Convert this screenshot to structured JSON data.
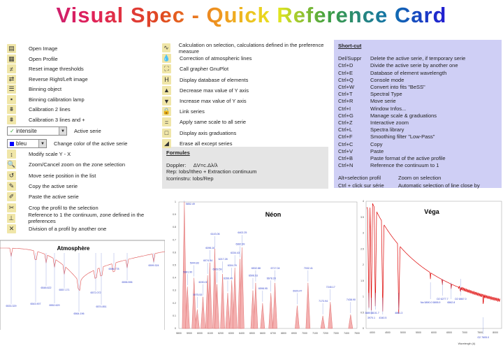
{
  "title": "Visual Spec - Quick Reference Card",
  "left_items": [
    {
      "icon": "open-image-icon",
      "label": "Open Image"
    },
    {
      "icon": "open-profile-icon",
      "label": "Open Profile"
    },
    {
      "icon": "reset-thresholds-icon",
      "label": "Reset image thresholds"
    },
    {
      "icon": "reverse-image-icon",
      "label": "Reverse Right/Left image"
    },
    {
      "icon": "binning-object-icon",
      "label": "Binning object"
    },
    {
      "icon": "binning-lamp-icon",
      "label": "Binning calibration lamp"
    },
    {
      "icon": "calibration-2-icon",
      "label": "Calibration 2 lines"
    },
    {
      "icon": "calibration-3-icon",
      "label": "Calibration 3 lines and +"
    }
  ],
  "active_serie": {
    "value": "intensite",
    "label": "Active serie"
  },
  "serie_color": {
    "value": "bleu",
    "label": "Change color of the active serie",
    "color": "#0000ff"
  },
  "left_items2": [
    {
      "icon": "scale-icon",
      "label": "Modify scale Y - X"
    },
    {
      "icon": "zoom-icon",
      "label": "Zoom/Cancel zoom on the zone selection"
    },
    {
      "icon": "move-serie-icon",
      "label": "Move serie position in the list"
    },
    {
      "icon": "copy-serie-icon",
      "label": "Copy the active serie"
    },
    {
      "icon": "paste-serie-icon",
      "label": "Paste the active serie"
    },
    {
      "icon": "crop-icon",
      "label": "Crop the profil to the selection"
    },
    {
      "icon": "continuum-icon",
      "label": "Reference to 1 the continuum, zone defined in the preferences"
    },
    {
      "icon": "divide-icon",
      "label": "Division of a profil by another one"
    }
  ],
  "mid_items": [
    {
      "icon": "calculation-icon",
      "label": "Calculation on selection, calculations defined in the preference measure"
    },
    {
      "icon": "atmospheric-icon",
      "label": "Correction of atmospheric lines"
    },
    {
      "icon": "gnuplot-icon",
      "label": "Call grapher GnuPlot"
    },
    {
      "icon": "database-icon",
      "label": "Display database of elements"
    },
    {
      "icon": "decrease-y-icon",
      "label": "Decrease max value of Y axis"
    },
    {
      "icon": "increase-y-icon",
      "label": "Increase max value of Y axis"
    },
    {
      "icon": "link-icon",
      "label": "Link series"
    },
    {
      "icon": "same-scale-icon",
      "label": "Apply same scale to all serie"
    },
    {
      "icon": "graduations-icon",
      "label": "Display axis graduations"
    },
    {
      "icon": "erase-icon",
      "label": "Erase all except series"
    }
  ],
  "formules": {
    "heading": "Formules",
    "doppler_label": "Doppler:",
    "doppler": "ΔV=c.Δλ/λ",
    "rep": "Rep: Iobs/Itheo + Extraction continuum",
    "icorr": "Icorrinstru: Iobs/Rep"
  },
  "shortcuts": {
    "heading": "Short-cut",
    "items": [
      [
        "Del/Suppr",
        "Delete the active serie, if temporary serie"
      ],
      [
        "Ctrl+D",
        "Divide the active serie by another one"
      ],
      [
        "Ctrl+E",
        "Database of element wavelength"
      ],
      [
        "Ctrl+Q",
        "Console mode"
      ],
      [
        "Ctrl+W",
        "Convert into fits \"BeSS\""
      ],
      [
        "Ctrl+T",
        "Spectral Type"
      ],
      [
        "Ctrl+R",
        "Move serie"
      ],
      [
        "Ctrl+I",
        "Window Infos..."
      ],
      [
        "Ctrl+G",
        "Manage scale & graduations"
      ],
      [
        "Ctrl+Z",
        "Interactive zoom"
      ],
      [
        "Ctrl+L",
        "Spectra library"
      ],
      [
        "Ctrl+F",
        "Smoothing filter \"Low-Pass\""
      ],
      [
        "Ctrl+C",
        "Copy"
      ],
      [
        "Ctrl+V",
        "Paste"
      ],
      [
        "Ctrl+B",
        "Paste format of the active profile"
      ],
      [
        "Ctrl+N",
        "Reference the continuum to 1"
      ]
    ],
    "extra": [
      [
        "Alt+selection profil",
        "Zoom on selection"
      ],
      [
        "Ctrl + click sur série",
        "Automatic selection of line close by"
      ]
    ]
  },
  "chart_data": [
    {
      "type": "line",
      "title": "Atmosphère",
      "line_labels": [
        "6533.329",
        "6543.907",
        "6548.622",
        "6552.629",
        "6557.171",
        "6564.196",
        "6572.072",
        "6574.851",
        "6586.778",
        "6596.596",
        "6599.324"
      ],
      "color": "#e05050"
    },
    {
      "type": "bar",
      "title": "Néon",
      "xlim": [
        5800,
        7500
      ],
      "ylim": [
        0,
        1
      ],
      "xticks": [
        5800,
        5900,
        6000,
        6100,
        6200,
        6300,
        6400,
        6500,
        6600,
        6700,
        6800,
        6900,
        7000,
        7100,
        7200,
        7300,
        7400,
        7500
      ],
      "yticks": [
        0,
        0.1,
        0.2,
        0.3,
        0.4,
        0.5,
        0.6,
        0.7,
        0.8,
        0.9,
        1
      ],
      "lines": [
        [
          5852.49,
          1.0
        ],
        [
          5881.9,
          0.33
        ],
        [
          5944.83,
          0.4
        ],
        [
          5975.53,
          0.15
        ],
        [
          6030.0,
          0.25
        ],
        [
          6074.34,
          0.42
        ],
        [
          6096.16,
          0.52
        ],
        [
          6143.06,
          0.63
        ],
        [
          6163.59,
          0.35
        ],
        [
          6217.28,
          0.43
        ],
        [
          6266.49,
          0.28
        ],
        [
          6304.79,
          0.38
        ],
        [
          6334.43,
          0.48
        ],
        [
          6382.99,
          0.55
        ],
        [
          6402.25,
          0.64
        ],
        [
          6506.53,
          0.3
        ],
        [
          6532.88,
          0.36
        ],
        [
          6598.95,
          0.2
        ],
        [
          6678.28,
          0.28
        ],
        [
          6717.04,
          0.36
        ],
        [
          6929.47,
          0.18
        ],
        [
          7032.41,
          0.36
        ],
        [
          7173.94,
          0.1
        ],
        [
          7245.17,
          0.21
        ],
        [
          7438.9,
          0.11
        ]
      ],
      "color": "#e07070",
      "label_color": "#3344cc"
    },
    {
      "type": "line",
      "title": "Véga",
      "xlabel": "Wavelength (A)",
      "xlim": [
        3800,
        8200
      ],
      "ylim": [
        0,
        4
      ],
      "xticks": [
        4000,
        4500,
        5000,
        5500,
        6000,
        6500,
        7000,
        7500,
        8000
      ],
      "yticks": [
        0,
        0.5,
        1,
        1.5,
        2,
        2.5,
        3,
        3.5,
        4
      ],
      "line_labels": [
        [
          3889,
          "3889.0"
        ],
        [
          3970,
          "3970.1"
        ],
        [
          4101.7,
          "4101.7"
        ],
        [
          4340.5,
          "4340.5"
        ],
        [
          4861.3,
          "4861.3"
        ],
        [
          5890,
          "Na 5890.0 5895.9"
        ],
        [
          6277.7,
          "O2 6277.7"
        ],
        [
          6562.8,
          "6562.8"
        ],
        [
          6867,
          "O2 6867.0"
        ],
        [
          7605,
          "O2 7605.0"
        ]
      ],
      "color": "#dd0000"
    }
  ]
}
